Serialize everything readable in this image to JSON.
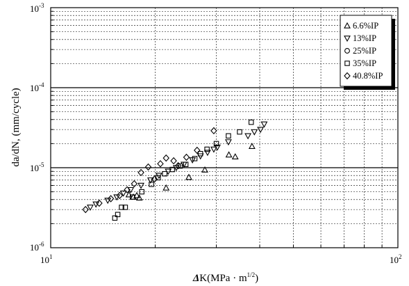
{
  "chart_data": {
    "type": "scatter",
    "x_scale": "log",
    "y_scale": "log",
    "xlim": [
      10,
      100
    ],
    "ylim": [
      1e-06,
      0.001
    ],
    "grid": true,
    "legend_position": "top-right",
    "xlabel": "ΔK(MPa · m^1/2)",
    "xlabel_parts": {
      "delta": "Δ",
      "main": "K(MPa · m",
      "exp": "1/2",
      "close": ")"
    },
    "ylabel": "da/dN, (mm/cycle)",
    "x_ticks": [
      {
        "value": 10,
        "base": "10",
        "exp": "1"
      },
      {
        "value": 100,
        "base": "10",
        "exp": "2"
      }
    ],
    "y_ticks": [
      {
        "value": 1e-06,
        "base": "10",
        "exp": "-6"
      },
      {
        "value": 1e-05,
        "base": "10",
        "exp": "-5"
      },
      {
        "value": 0.0001,
        "base": "10",
        "exp": "-4"
      },
      {
        "value": 0.001,
        "base": "10",
        "exp": "-3"
      }
    ],
    "series": [
      {
        "name": "6.6%IP",
        "marker": "triangle-up",
        "x": [
          16.8,
          17.3,
          17.7,
          18.0,
          21.5,
          25.0,
          27.8,
          32.6,
          34.0,
          38.0
        ],
        "y": [
          4.6e-06,
          4.3e-06,
          4.5e-06,
          4.2e-06,
          5.6e-06,
          7.6e-06,
          9.4e-06,
          1.45e-05,
          1.37e-05,
          1.85e-05
        ]
      },
      {
        "name": "13%IP",
        "marker": "triangle-down",
        "x": [
          13.0,
          13.5,
          14.6,
          15.5,
          16.2,
          17.0,
          18.2,
          19.4,
          20.5,
          21.8,
          23.0,
          24.2,
          25.6,
          27.0,
          28.3,
          29.5,
          30.2,
          32.5,
          37.0,
          38.6,
          40.2,
          41.2
        ],
        "y": [
          3.2e-06,
          3.5e-06,
          3.9e-06,
          4.3e-06,
          4.8e-06,
          5.3e-06,
          6e-06,
          7e-06,
          8e-06,
          9e-06,
          1e-05,
          1.1e-05,
          1.25e-05,
          1.4e-05,
          1.55e-05,
          1.7e-05,
          1.8e-05,
          2.1e-05,
          2.5e-05,
          2.8e-05,
          3e-05,
          3.5e-05
        ]
      },
      {
        "name": "25%IP",
        "marker": "circle",
        "x": [],
        "y": []
      },
      {
        "name": "35%IP",
        "marker": "square",
        "x": [
          15.3,
          15.6,
          16.0,
          16.4,
          17.2,
          18.3,
          19.5,
          20.4,
          21.3,
          22.4,
          23.6,
          24.5,
          26.0,
          27.0,
          28.2,
          30.0,
          32.5,
          35.0,
          37.8
        ],
        "y": [
          2.35e-06,
          2.6e-06,
          3.2e-06,
          3.2e-06,
          4.3e-06,
          5e-06,
          6.2e-06,
          7.5e-06,
          8.4e-06,
          9.5e-06,
          1.05e-05,
          1.1e-05,
          1.3e-05,
          1.5e-05,
          1.7e-05,
          2e-05,
          2.5e-05,
          2.8e-05,
          3.7e-05
        ]
      },
      {
        "name": "40.8%IP",
        "marker": "diamond",
        "x": [
          12.6,
          13.8,
          14.9,
          15.8,
          16.6,
          17.4,
          18.2,
          19.1,
          19.9,
          20.7,
          21.5,
          22.6,
          23.3,
          24.6,
          26.4,
          29.5
        ],
        "y": [
          3e-06,
          3.6e-06,
          4.1e-06,
          4.5e-06,
          5.3e-06,
          6.3e-06,
          8.7e-06,
          1.02e-05,
          7.2e-06,
          1.12e-05,
          1.32e-05,
          1.22e-05,
          1.06e-05,
          1.35e-05,
          1.65e-05,
          2.9e-05
        ]
      }
    ]
  }
}
